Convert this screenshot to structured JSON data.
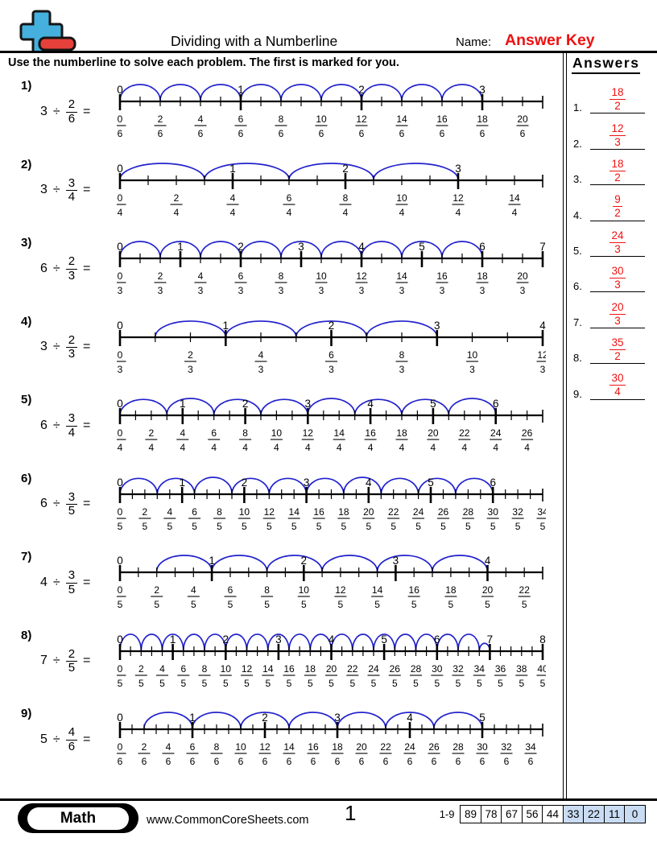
{
  "header": {
    "title": "Dividing with a Numberline",
    "name_label": "Name:",
    "name_value": "Answer Key",
    "instructions": "Use the numberline to solve each problem. The first is marked for you."
  },
  "symbols": {
    "divide": "÷",
    "equals": "="
  },
  "problems": [
    {
      "label": "1)",
      "dividend": "3",
      "divisor_numerator": "2",
      "divisor_denominator": "6",
      "numberline": {
        "denominator": 6,
        "tick_end": 21,
        "label_step": 2,
        "label_max": 20,
        "arc": {
          "start": 0,
          "step": 2,
          "count": 9
        }
      }
    },
    {
      "label": "2)",
      "dividend": "3",
      "divisor_numerator": "3",
      "divisor_denominator": "4",
      "numberline": {
        "denominator": 4,
        "tick_end": 15,
        "label_step": 2,
        "label_max": 14,
        "arc": {
          "start": 0,
          "step": 3,
          "count": 4
        }
      }
    },
    {
      "label": "3)",
      "dividend": "6",
      "divisor_numerator": "2",
      "divisor_denominator": "3",
      "numberline": {
        "denominator": 3,
        "tick_end": 21,
        "label_step": 2,
        "label_max": 20,
        "arc": {
          "start": 0,
          "step": 2,
          "count": 9
        }
      }
    },
    {
      "label": "4)",
      "dividend": "3",
      "divisor_numerator": "2",
      "divisor_denominator": "3",
      "numberline": {
        "denominator": 3,
        "tick_end": 12,
        "label_step": 2,
        "label_max": 12,
        "arc": {
          "start": 1,
          "step": 2,
          "count": 4
        }
      }
    },
    {
      "label": "5)",
      "dividend": "6",
      "divisor_numerator": "3",
      "divisor_denominator": "4",
      "numberline": {
        "denominator": 4,
        "tick_end": 27,
        "label_step": 2,
        "label_max": 26,
        "arc": {
          "start": 0,
          "step": 3,
          "count": 8
        }
      }
    },
    {
      "label": "6)",
      "dividend": "6",
      "divisor_numerator": "3",
      "divisor_denominator": "5",
      "numberline": {
        "denominator": 5,
        "tick_end": 34,
        "label_step": 2,
        "label_max": 34,
        "arc": {
          "start": 0,
          "step": 3,
          "count": 10
        }
      }
    },
    {
      "label": "7)",
      "dividend": "4",
      "divisor_numerator": "3",
      "divisor_denominator": "5",
      "numberline": {
        "denominator": 5,
        "tick_end": 23,
        "label_step": 2,
        "label_max": 22,
        "arc": {
          "start": 2,
          "step": 3,
          "count": 6
        }
      }
    },
    {
      "label": "8)",
      "dividend": "7",
      "divisor_numerator": "2",
      "divisor_denominator": "5",
      "numberline": {
        "denominator": 5,
        "tick_end": 40,
        "label_step": 2,
        "label_max": 40,
        "arc": {
          "start": 0,
          "step": 2,
          "count": 17,
          "partial_end": 35
        }
      }
    },
    {
      "label": "9)",
      "dividend": "5",
      "divisor_numerator": "4",
      "divisor_denominator": "6",
      "numberline": {
        "denominator": 6,
        "tick_end": 35,
        "label_step": 2,
        "label_max": 34,
        "arc": {
          "start": 2,
          "step": 4,
          "count": 7
        }
      }
    }
  ],
  "answers_panel": {
    "title": "Answers",
    "items": [
      {
        "label": "1.",
        "numerator": "18",
        "denominator": "2"
      },
      {
        "label": "2.",
        "numerator": "12",
        "denominator": "3"
      },
      {
        "label": "3.",
        "numerator": "18",
        "denominator": "2"
      },
      {
        "label": "4.",
        "numerator": "9",
        "denominator": "2"
      },
      {
        "label": "5.",
        "numerator": "24",
        "denominator": "3"
      },
      {
        "label": "6.",
        "numerator": "30",
        "denominator": "3"
      },
      {
        "label": "7.",
        "numerator": "20",
        "denominator": "3"
      },
      {
        "label": "8.",
        "numerator": "35",
        "denominator": "2"
      },
      {
        "label": "9.",
        "numerator": "30",
        "denominator": "4"
      }
    ]
  },
  "footer": {
    "subject_badge": "Math",
    "website": "www.CommonCoreSheets.com",
    "page_number": "1",
    "score_strip": {
      "range_label": "1-9",
      "cells": [
        "89",
        "78",
        "67",
        "56",
        "44",
        "33",
        "22",
        "11",
        "0"
      ],
      "highlight_from_index": 5
    }
  },
  "colors": {
    "arc_blue": "#2323cd",
    "answer_red": "#ee1111",
    "score_highlight": "#c9dcf3",
    "line_black": "#000000"
  }
}
